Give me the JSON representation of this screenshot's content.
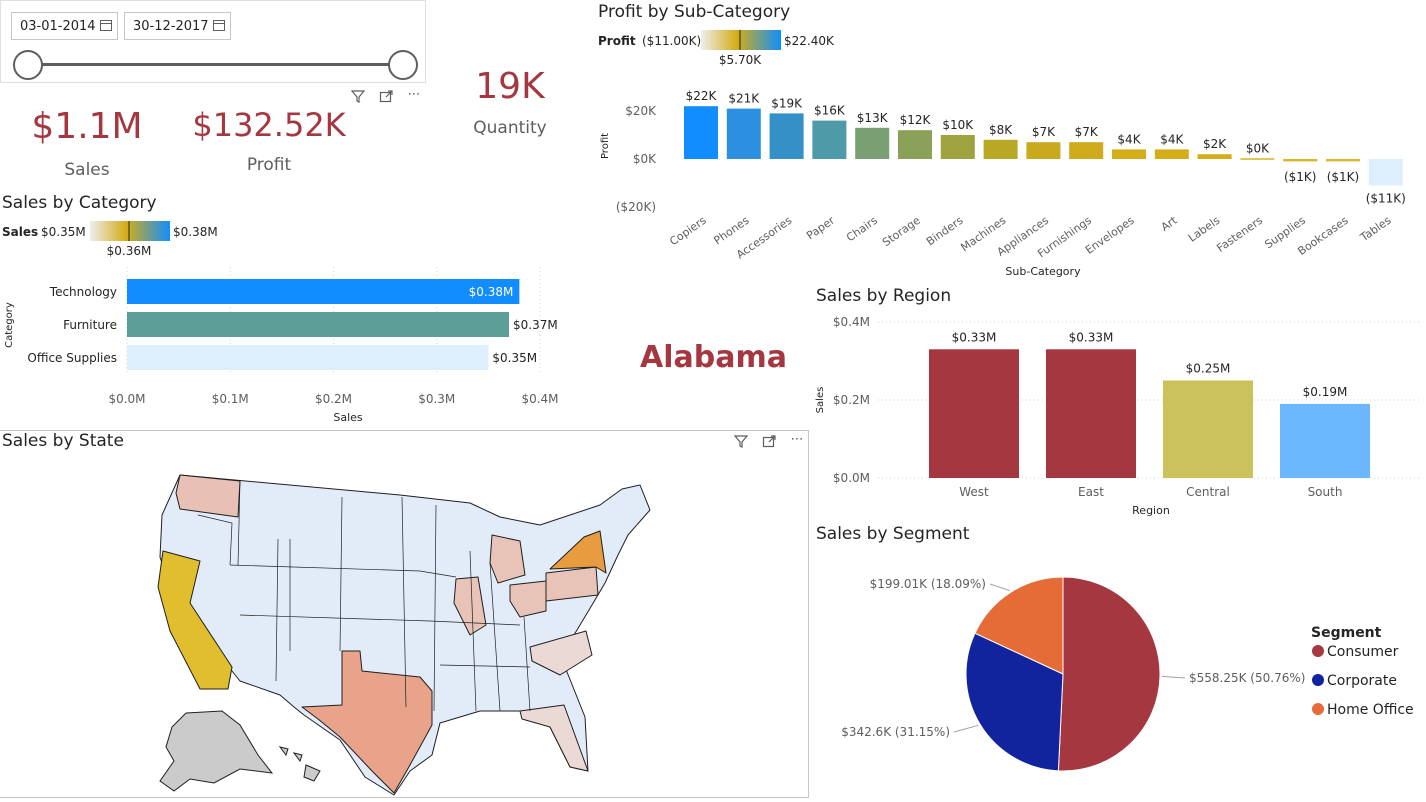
{
  "slicer": {
    "start_date": "03-01-2014",
    "end_date": "30-12-2017"
  },
  "kpis": {
    "sales": {
      "value": "$1.1M",
      "label": "Sales"
    },
    "profit": {
      "value": "$132.52K",
      "label": "Profit"
    },
    "quantity": {
      "value": "19K",
      "label": "Quantity"
    }
  },
  "selected_state": "Alabama",
  "colors": {
    "kpi": "#A4373F",
    "accent_blue": "#118DFF",
    "teal": "#5E9E98",
    "light": "#DDEEFD"
  },
  "chart_data": [
    {
      "type": "bar",
      "id": "sales_by_category",
      "title": "Sales by Category",
      "orientation": "horizontal",
      "categories": [
        "Technology",
        "Furniture",
        "Office Supplies"
      ],
      "values": [
        0.38,
        0.37,
        0.35
      ],
      "data_labels": [
        "$0.38M",
        "$0.37M",
        "$0.35M"
      ],
      "colors": [
        "#118DFF",
        "#5E9E98",
        "#DDEEFD"
      ],
      "xlabel": "Sales",
      "ylabel": "Category",
      "xlim": [
        0,
        0.4
      ],
      "xticks": [
        "$0.0M",
        "$0.1M",
        "$0.2M",
        "$0.3M",
        "$0.4M"
      ],
      "gradient_legend": {
        "measure": "Sales",
        "min": "$0.35M",
        "mid": "$0.36M",
        "max": "$0.38M"
      }
    },
    {
      "type": "bar",
      "id": "profit_by_subcategory",
      "title": "Profit by Sub-Category",
      "categories": [
        "Copiers",
        "Phones",
        "Accessories",
        "Paper",
        "Chairs",
        "Storage",
        "Binders",
        "Machines",
        "Appliances",
        "Furnishings",
        "Envelopes",
        "Art",
        "Labels",
        "Fasteners",
        "Supplies",
        "Bookcases",
        "Tables"
      ],
      "values": [
        22,
        21,
        19,
        16,
        13,
        12,
        10,
        8,
        7,
        7,
        4,
        4,
        2,
        0.3,
        -1,
        -1,
        -11
      ],
      "data_labels": [
        "$22K",
        "$21K",
        "$19K",
        "$16K",
        "$13K",
        "$12K",
        "$10K",
        "$8K",
        "$7K",
        "$7K",
        "$4K",
        "$4K",
        "$2K",
        "$0K",
        "($1K)",
        "($1K)",
        "($11K)"
      ],
      "colors": [
        "#118DFF",
        "#2C8FE0",
        "#3690C8",
        "#4E9AA8",
        "#7A9F72",
        "#8AA157",
        "#9FA33F",
        "#B8A824",
        "#C9A91D",
        "#CFAA1A",
        "#D4AD18",
        "#D5AD18",
        "#D5AE17",
        "#D8B522",
        "#D8B52A",
        "#D9B730",
        "#DDEEFD"
      ],
      "xlabel": "Sub-Category",
      "ylabel": "Profit",
      "ylim": [
        -20,
        25
      ],
      "yticks": [
        "$20K",
        "$0K",
        "($20K)"
      ],
      "gradient_legend": {
        "measure": "Profit",
        "min": "($11.00K)",
        "mid": "$5.70K",
        "max": "$22.40K"
      }
    },
    {
      "type": "bar",
      "id": "sales_by_region",
      "title": "Sales by Region",
      "categories": [
        "West",
        "East",
        "Central",
        "South"
      ],
      "values": [
        0.33,
        0.33,
        0.25,
        0.19
      ],
      "data_labels": [
        "$0.33M",
        "$0.33M",
        "$0.25M",
        "$0.19M"
      ],
      "colors": [
        "#A4373F",
        "#A4373F",
        "#CBC25C",
        "#6BB8FF"
      ],
      "xlabel": "Region",
      "ylabel": "Sales",
      "ylim": [
        0,
        0.4
      ],
      "yticks": [
        "$0.4M",
        "$0.2M",
        "$0.0M"
      ]
    },
    {
      "type": "pie",
      "id": "sales_by_segment",
      "title": "Sales by Segment",
      "legend_title": "Segment",
      "legend_position": "right",
      "categories": [
        "Consumer",
        "Corporate",
        "Home Office"
      ],
      "values": [
        558.25,
        342.6,
        199.01
      ],
      "percents": [
        50.76,
        31.15,
        18.09
      ],
      "data_labels": [
        "$558.25K (50.76%)",
        "$342.6K (31.15%)",
        "$199.01K (18.09%)"
      ],
      "colors": [
        "#A4373F",
        "#12239E",
        "#E66C37"
      ]
    },
    {
      "type": "map",
      "id": "sales_by_state",
      "title": "Sales by State",
      "highlighted": [
        {
          "state": "California",
          "color": "#E0BE2E"
        },
        {
          "state": "New York",
          "color": "#E89C3F"
        },
        {
          "state": "Texas",
          "color": "#E8A38A"
        },
        {
          "state": "Washington",
          "color": "#E8C0B5"
        },
        {
          "state": "Pennsylvania",
          "color": "#E8C4B8"
        },
        {
          "state": "Illinois",
          "color": "#E8C4B8"
        },
        {
          "state": "Ohio",
          "color": "#E8C4B8"
        },
        {
          "state": "Michigan",
          "color": "#E8C4B8"
        }
      ]
    }
  ]
}
